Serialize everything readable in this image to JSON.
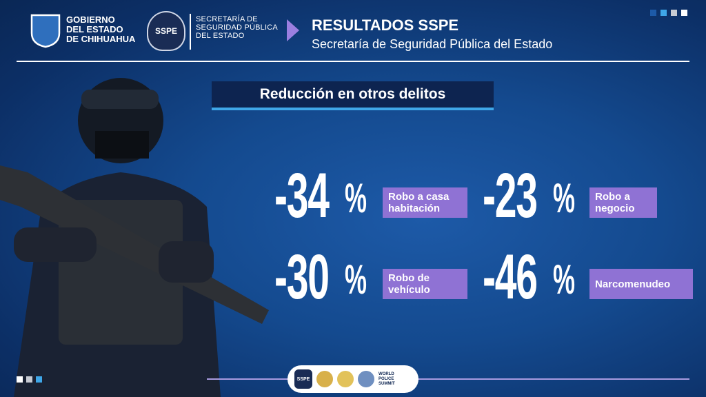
{
  "header": {
    "gobierno": [
      "GOBIERNO",
      "DEL ESTADO",
      "DE CHIHUAHUA"
    ],
    "sspe_logo": "SSPE",
    "secretaria": [
      "SECRETARÍA DE",
      "SEGURIDAD PÚBLICA",
      "DEL ESTADO"
    ],
    "title": "RESULTADOS SSPE",
    "subtitle": "Secretaría de Seguridad Pública del Estado"
  },
  "section_title": "Reducción en otros delitos",
  "stats": [
    {
      "number": "-34",
      "unit": "%",
      "label": [
        "Robo a casa",
        "habitación"
      ]
    },
    {
      "number": "-23",
      "unit": "%",
      "label": [
        "Robo a",
        "negocio"
      ]
    },
    {
      "number": "-30",
      "unit": "%",
      "label": [
        "Robo de",
        "vehículo"
      ]
    },
    {
      "number": "-46",
      "unit": "%",
      "label": [
        "Narcomenudeo"
      ]
    }
  ],
  "footer": {
    "sspe_logo": "SSPE",
    "summit": [
      "WORLD",
      "POLICE",
      "SUMMIT"
    ]
  }
}
